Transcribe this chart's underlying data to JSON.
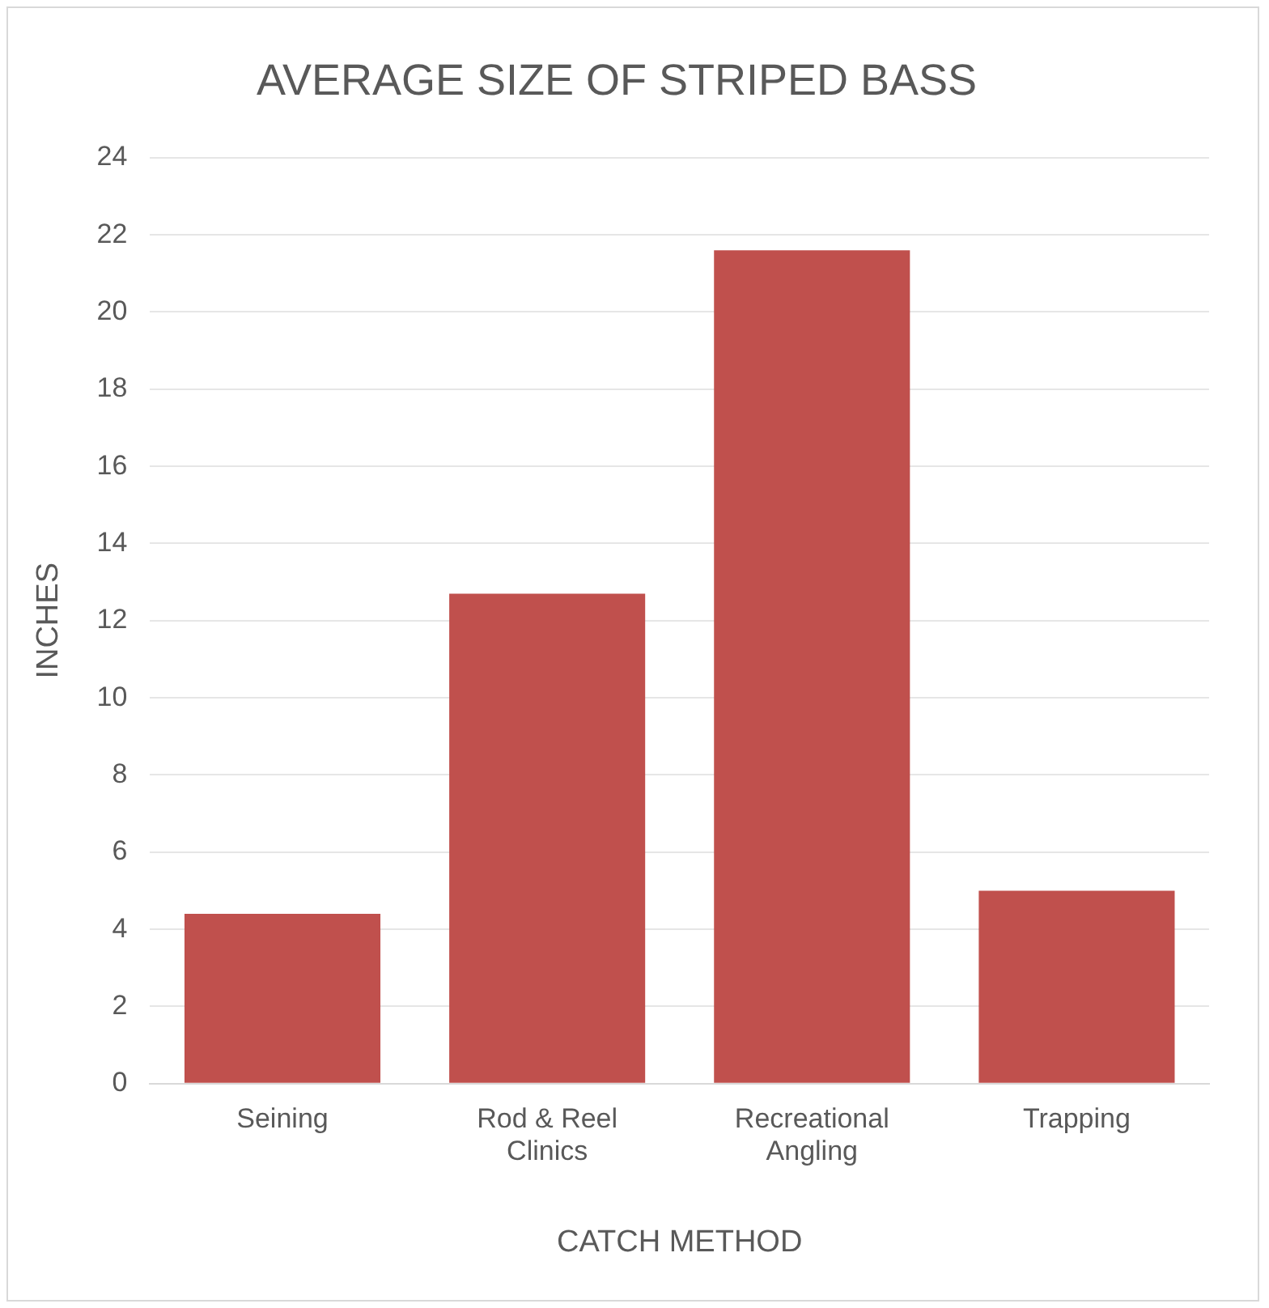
{
  "chart_data": {
    "type": "bar",
    "title": "AVERAGE SIZE OF STRIPED BASS",
    "xlabel": "CATCH METHOD",
    "ylabel": "INCHES",
    "categories": [
      "Seining",
      "Rod & Reel Clinics",
      "Recreational Angling",
      "Trapping"
    ],
    "values": [
      4.4,
      12.7,
      21.6,
      5.0
    ],
    "color": "#c0504d",
    "ylim": [
      0,
      24
    ],
    "yticks": [
      0,
      2,
      4,
      6,
      8,
      10,
      12,
      14,
      16,
      18,
      20,
      22,
      24
    ],
    "grid": "y",
    "legend": false
  }
}
